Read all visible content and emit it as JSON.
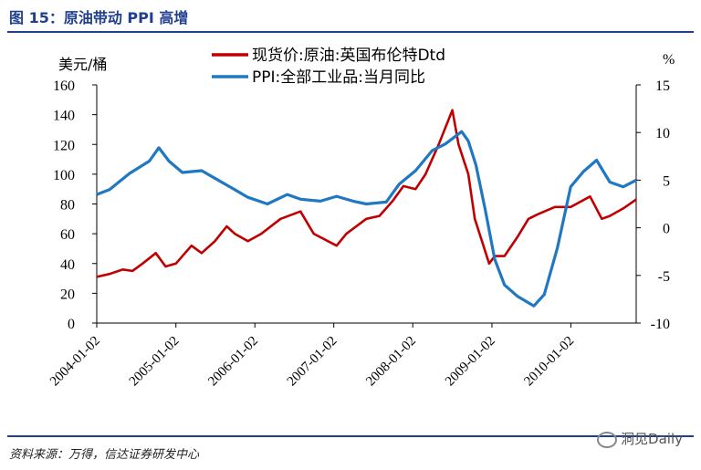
{
  "page": {
    "title": "图 15：原油带动 PPI 高增",
    "source": "资料来源：万得，信达证券研发中心",
    "watermark": "洞见Daily"
  },
  "chart_data": {
    "type": "line",
    "title": "",
    "x_dates": [
      "2004-01-02",
      "2005-01-02",
      "2006-01-02",
      "2007-01-02",
      "2008-01-02",
      "2009-01-02",
      "2010-01-02"
    ],
    "y_left_label": "美元/桶",
    "y_right_label": "%",
    "ylim_left": [
      0,
      160
    ],
    "ylim_right": [
      -10,
      15
    ],
    "left_ticks": [
      0,
      20,
      40,
      60,
      80,
      100,
      120,
      140,
      160
    ],
    "right_ticks": [
      -10,
      -5,
      0,
      5,
      10,
      15
    ],
    "x_range": [
      "2004-01-02",
      "2010-10-31"
    ],
    "legend_position": "top-center",
    "colors": {
      "oil": "#c00000",
      "ppi": "#1f78c1"
    },
    "series": [
      {
        "name": "现货价:原油:英国布伦特Dtd",
        "axis": "left",
        "color": "#c00000",
        "points": [
          [
            "2004-01-02",
            31
          ],
          [
            "2004-03-01",
            33
          ],
          [
            "2004-05-01",
            36
          ],
          [
            "2004-06-15",
            35
          ],
          [
            "2004-08-01",
            40
          ],
          [
            "2004-10-01",
            47
          ],
          [
            "2004-11-15",
            38
          ],
          [
            "2005-01-02",
            40
          ],
          [
            "2005-03-15",
            52
          ],
          [
            "2005-05-01",
            47
          ],
          [
            "2005-07-01",
            55
          ],
          [
            "2005-08-25",
            65
          ],
          [
            "2005-10-01",
            60
          ],
          [
            "2005-12-01",
            55
          ],
          [
            "2006-02-01",
            60
          ],
          [
            "2006-05-01",
            70
          ],
          [
            "2006-08-01",
            75
          ],
          [
            "2006-10-01",
            60
          ],
          [
            "2007-01-15",
            52
          ],
          [
            "2007-03-01",
            60
          ],
          [
            "2007-06-01",
            70
          ],
          [
            "2007-08-01",
            72
          ],
          [
            "2007-10-01",
            82
          ],
          [
            "2007-11-20",
            92
          ],
          [
            "2008-01-15",
            90
          ],
          [
            "2008-03-01",
            100
          ],
          [
            "2008-05-01",
            120
          ],
          [
            "2008-07-03",
            143
          ],
          [
            "2008-08-01",
            120
          ],
          [
            "2008-09-15",
            100
          ],
          [
            "2008-10-15",
            70
          ],
          [
            "2008-12-20",
            40
          ],
          [
            "2009-01-15",
            45
          ],
          [
            "2009-03-01",
            45
          ],
          [
            "2009-05-01",
            58
          ],
          [
            "2009-06-20",
            70
          ],
          [
            "2009-08-01",
            73
          ],
          [
            "2009-10-20",
            78
          ],
          [
            "2010-01-01",
            78
          ],
          [
            "2010-04-01",
            85
          ],
          [
            "2010-05-25",
            70
          ],
          [
            "2010-07-01",
            72
          ],
          [
            "2010-09-01",
            77
          ],
          [
            "2010-10-31",
            83
          ]
        ]
      },
      {
        "name": "PPI:全部工业品:当月同比",
        "axis": "right",
        "color": "#1f78c1",
        "points": [
          [
            "2004-01-02",
            3.5
          ],
          [
            "2004-03-01",
            4.0
          ],
          [
            "2004-06-01",
            5.7
          ],
          [
            "2004-09-01",
            7.0
          ],
          [
            "2004-10-15",
            8.4
          ],
          [
            "2004-12-01",
            7.0
          ],
          [
            "2005-02-01",
            5.8
          ],
          [
            "2005-05-01",
            6.0
          ],
          [
            "2005-07-01",
            5.2
          ],
          [
            "2005-10-01",
            4.0
          ],
          [
            "2005-12-01",
            3.2
          ],
          [
            "2006-03-01",
            2.5
          ],
          [
            "2006-06-01",
            3.5
          ],
          [
            "2006-08-01",
            3.0
          ],
          [
            "2006-11-01",
            2.8
          ],
          [
            "2007-01-15",
            3.3
          ],
          [
            "2007-04-01",
            2.8
          ],
          [
            "2007-06-01",
            2.5
          ],
          [
            "2007-09-01",
            2.7
          ],
          [
            "2007-11-01",
            4.6
          ],
          [
            "2008-01-15",
            6.0
          ],
          [
            "2008-04-01",
            8.1
          ],
          [
            "2008-06-01",
            8.8
          ],
          [
            "2008-08-15",
            10.1
          ],
          [
            "2008-09-15",
            9.1
          ],
          [
            "2008-10-20",
            6.6
          ],
          [
            "2008-12-01",
            2.0
          ],
          [
            "2009-01-15",
            -3.3
          ],
          [
            "2009-03-01",
            -6.0
          ],
          [
            "2009-05-01",
            -7.2
          ],
          [
            "2009-07-15",
            -8.2
          ],
          [
            "2009-09-01",
            -7.0
          ],
          [
            "2009-11-01",
            -2.1
          ],
          [
            "2010-01-01",
            4.3
          ],
          [
            "2010-03-01",
            5.9
          ],
          [
            "2010-05-01",
            7.1
          ],
          [
            "2010-07-01",
            4.8
          ],
          [
            "2010-09-01",
            4.3
          ],
          [
            "2010-10-31",
            5.0
          ]
        ]
      }
    ]
  }
}
